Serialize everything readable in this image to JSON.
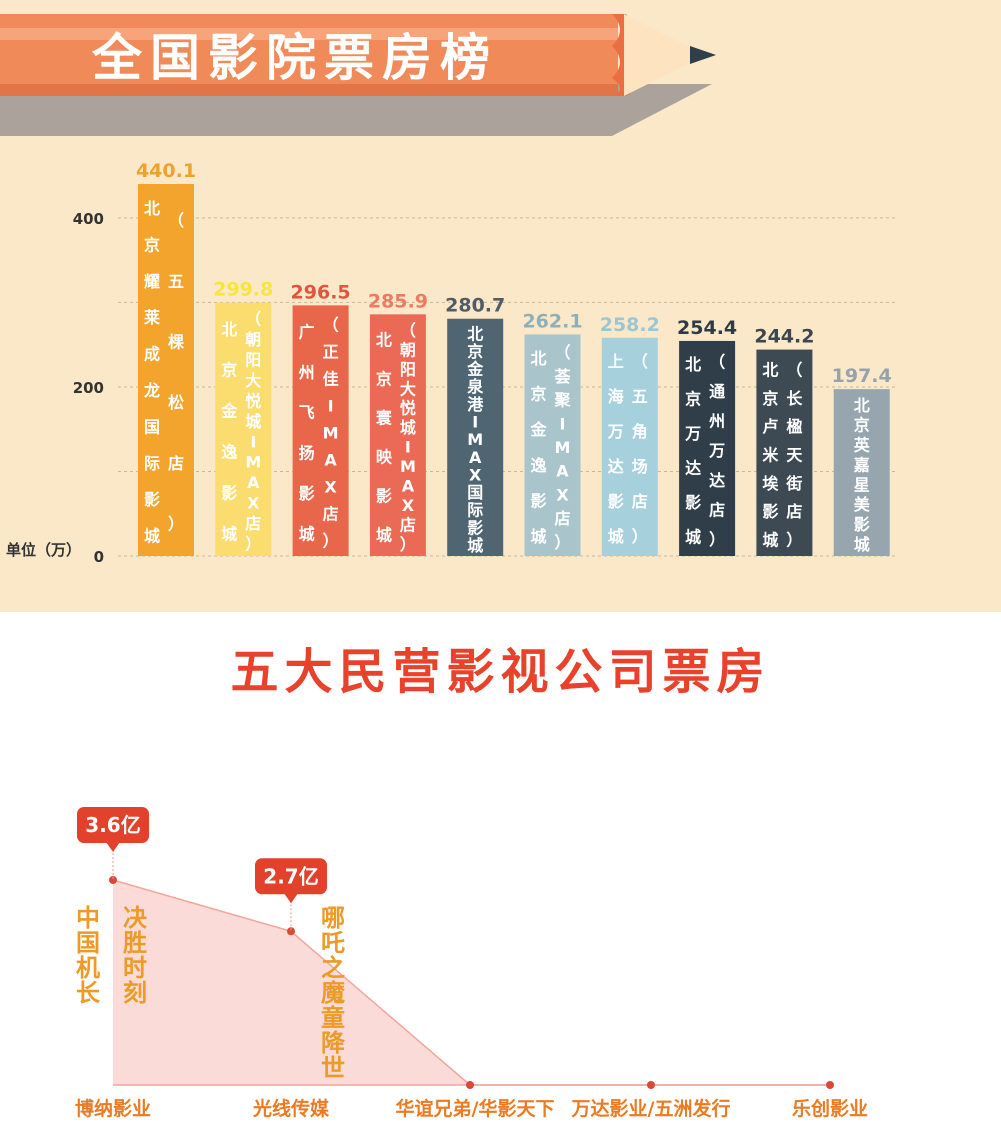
{
  "banner_title": "全国影院票房榜",
  "section2_title": "五大民营影视公司票房",
  "chart_data": [
    {
      "type": "bar",
      "title": "全国影院票房榜",
      "ylabel": "单位（万）",
      "yticks": [
        0,
        200,
        400
      ],
      "ylim": [
        0,
        460
      ],
      "categories": [
        "北京耀莱成龙国际影城（五棵松店）",
        "北京金逸影城（朝阳大悦城IMAX店）",
        "广州飞扬影城（正佳IMAX店）",
        "北京寰映影城（朝阳大悦城IMAX店）",
        "北京金泉港IMAX国际影城",
        "北京金逸影城（荟聚IMAX店）",
        "上海万达影城（五角场店）",
        "北京万达影城（通州万达店）",
        "北京卢米埃影城（长楹天街店）",
        "北京英嘉星美影城"
      ],
      "values": [
        440.1,
        299.8,
        296.5,
        285.9,
        280.7,
        262.1,
        258.2,
        254.4,
        244.2,
        197.4
      ],
      "value_labels": [
        "440.1",
        "299.8",
        "296.5",
        "285.9",
        "280.7",
        "262.1",
        "258.2",
        "254.4",
        "244.2",
        "197.4"
      ],
      "label_columns": [
        [
          "北京耀莱成龙国际影城",
          "（五棵松店）"
        ],
        [
          "北京金逸影城",
          "（朝阳大悦城IMAX店）"
        ],
        [
          "广州飞扬影城",
          "（正佳IMAX店）"
        ],
        [
          "北京寰映影城",
          "（朝阳大悦城IMAX店）"
        ],
        [
          "北京金泉港IMAX国际影城"
        ],
        [
          "北京金逸影城",
          "（荟聚IMAX店）"
        ],
        [
          "上海万达影城",
          "（五角场店）"
        ],
        [
          "北京万达影城",
          "（通州万达店）"
        ],
        [
          "北京卢米埃影城",
          "（长楹天街店）"
        ],
        [
          "北京英嘉星美影城"
        ]
      ],
      "colors": [
        "#f2a42c",
        "#fbdc6f",
        "#e8674a",
        "#ea6a55",
        "#4f6572",
        "#a9c4cb",
        "#a6d0dc",
        "#2f3e49",
        "#3d4a54",
        "#97a5ae"
      ],
      "value_label_colors": [
        "#eea22b",
        "#f5e63e",
        "#e0553c",
        "#ef7a62",
        "#4f5d66",
        "#8fb0b9",
        "#9cc6d4",
        "#2e3b44",
        "#3b4650",
        "#96a3ab"
      ],
      "grid": true
    },
    {
      "type": "area",
      "title": "五大民营影视公司票房",
      "categories": [
        "博纳影业",
        "光线传媒",
        "华谊兄弟/华影天下",
        "万达影业/五洲发行",
        "乐创影业"
      ],
      "values": [
        3.6,
        2.7,
        0,
        0,
        0
      ],
      "callouts": [
        {
          "index": 0,
          "label": "3.6亿",
          "films": [
            "中国机长",
            "决胜时刻"
          ]
        },
        {
          "index": 1,
          "label": "2.7亿",
          "films": [
            "哪吒之魔童降世"
          ]
        }
      ],
      "colors": {
        "fill": "#f9d5d0",
        "line": "#f0a69c",
        "marker": "#d94a36",
        "callout": "#e2412c",
        "film_text": "#ec9a28",
        "category_text": "#eb7a22"
      }
    }
  ]
}
